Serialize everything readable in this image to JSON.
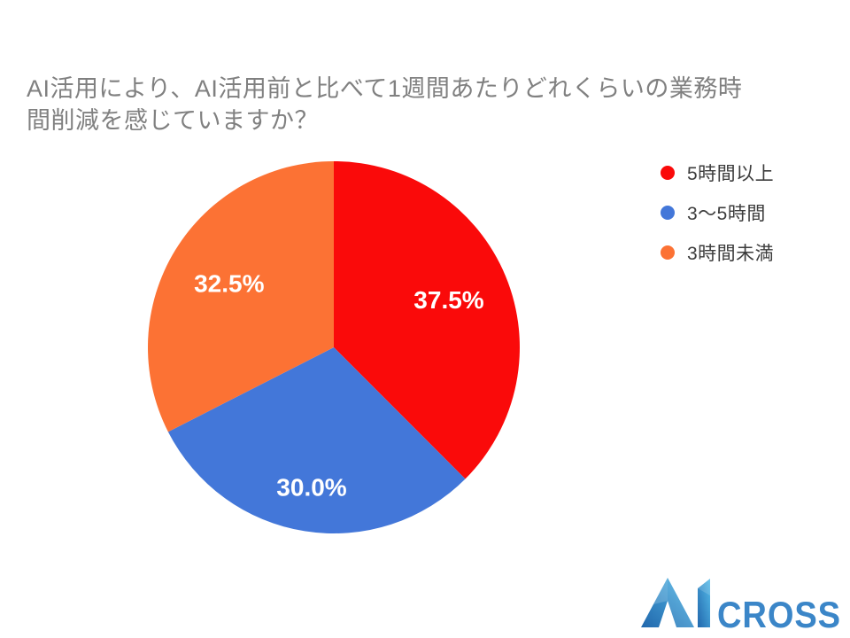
{
  "title": {
    "text": "AI活用により、AI活用前と比べて1週間あたりどれくらいの業務時\n間削減を感じていますか？",
    "color": "#808080"
  },
  "chart_data": {
    "type": "pie",
    "title": "AI活用により、AI活用前と比べて1週間あたりどれくらいの業務時間削減を感じていますか？",
    "series": [
      {
        "name": "5時間以上",
        "value": 37.5,
        "label": "37.5%",
        "color": "#fa0a0a"
      },
      {
        "name": "3〜5時間",
        "value": 30.0,
        "label": "30.0%",
        "color": "#4377d9"
      },
      {
        "name": "3時間未満",
        "value": 32.5,
        "label": "32.5%",
        "color": "#fc7234"
      }
    ],
    "start_angle_deg": 0,
    "direction": "clockwise",
    "legend_position": "right",
    "slice_label_color": "#ffffff",
    "legend_text_color": "#3c3c3c"
  },
  "logo": {
    "text_ai": "AI",
    "text_cross": "CROSS",
    "cross_color": "#3b86c8",
    "gradient": [
      "#2167ac",
      "#55bbe9"
    ]
  }
}
